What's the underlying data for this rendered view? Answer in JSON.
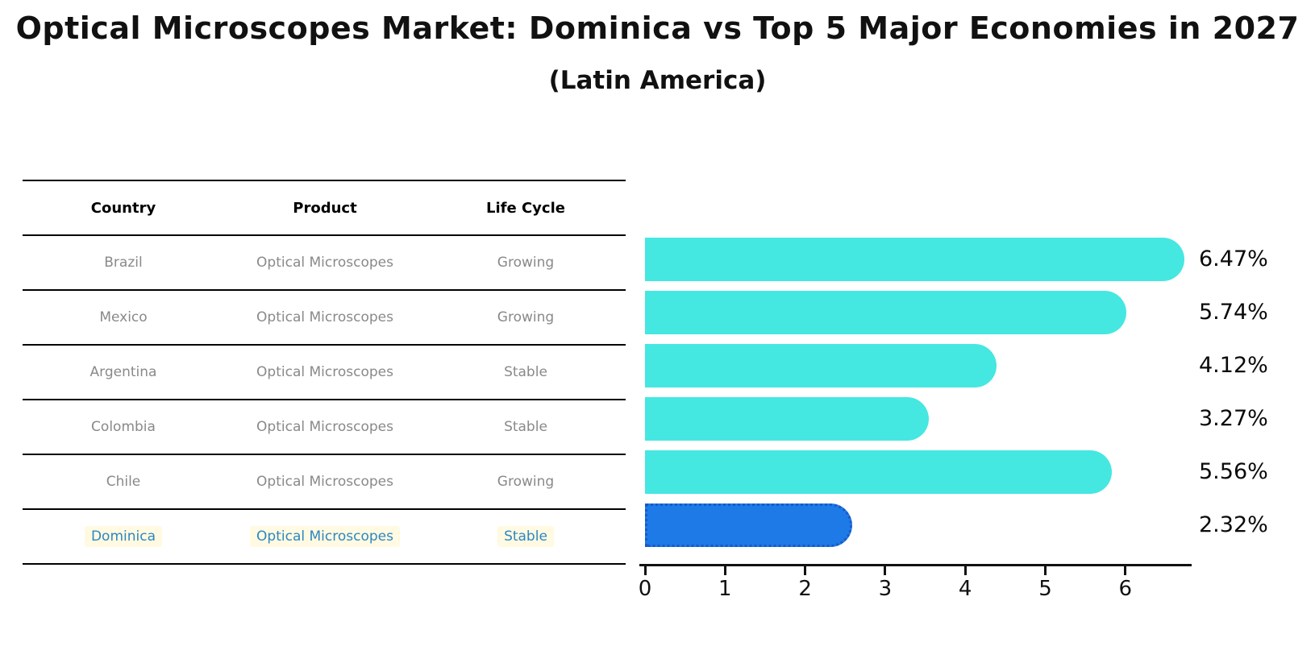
{
  "title": "Optical Microscopes Market: Dominica vs Top 5 Major Economies in 2027",
  "subtitle": "(Latin America)",
  "table": {
    "headers": [
      "Country",
      "Product",
      "Life Cycle"
    ],
    "rows": [
      {
        "country": "Brazil",
        "product": "Optical Microscopes",
        "life_cycle": "Growing"
      },
      {
        "country": "Mexico",
        "product": "Optical Microscopes",
        "life_cycle": "Growing"
      },
      {
        "country": "Argentina",
        "product": "Optical Microscopes",
        "life_cycle": "Stable"
      },
      {
        "country": "Colombia",
        "product": "Optical Microscopes",
        "life_cycle": "Stable"
      },
      {
        "country": "Chile",
        "product": "Optical Microscopes",
        "life_cycle": "Growing"
      },
      {
        "country": "Dominica",
        "product": "Optical Microscopes",
        "life_cycle": "Stable"
      }
    ],
    "highlighted_row": "Dominica"
  },
  "chart_data": {
    "type": "bar",
    "orientation": "horizontal",
    "title": "Optical Microscopes Market: Dominica vs Top 5 Major Economies in 2027",
    "subtitle": "(Latin America)",
    "categories": [
      "Brazil",
      "Mexico",
      "Argentina",
      "Colombia",
      "Chile",
      "Dominica"
    ],
    "values": [
      6.47,
      5.74,
      4.12,
      3.27,
      5.56,
      2.32
    ],
    "value_labels": [
      "6.47%",
      "5.74%",
      "4.12%",
      "3.27%",
      "5.56%",
      "2.32%"
    ],
    "unit": "percent",
    "xticks": [
      0,
      1,
      2,
      3,
      4,
      5,
      6
    ],
    "xlim": [
      0,
      6.8
    ],
    "grid": false,
    "legend": false,
    "bar_color": "#45e7e1",
    "highlight_bar_color": "#1e7ae6",
    "highlight_index": 5
  },
  "colors": {
    "background": "#ffffff",
    "bar": "#45e7e1",
    "highlight_bar": "#1e7ae6",
    "highlight_bar_border": "#1859c8",
    "table_text": "#898989",
    "header_text": "#000000",
    "highlight_text": "#2e86c4",
    "highlight_text_bg": "#fffae1",
    "axis": "#111111"
  }
}
